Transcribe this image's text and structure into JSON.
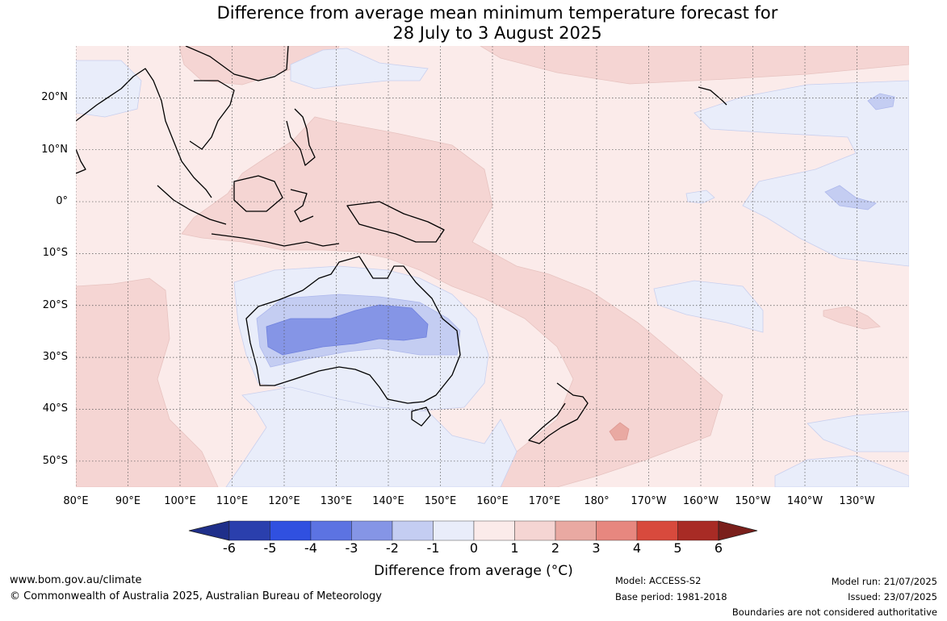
{
  "title": {
    "line1": "Difference from average mean minimum temperature forecast for",
    "line2": "28 July to 3 August 2025"
  },
  "map": {
    "latitude_labels": [
      "20°N",
      "10°N",
      "0°",
      "10°S",
      "20°S",
      "30°S",
      "40°S",
      "50°S"
    ],
    "latitude_values": [
      20,
      10,
      0,
      -10,
      -20,
      -30,
      -40,
      -50
    ],
    "longitude_labels": [
      "80°E",
      "90°E",
      "100°E",
      "110°E",
      "120°E",
      "130°E",
      "140°E",
      "150°E",
      "160°E",
      "170°E",
      "180°",
      "170°W",
      "160°W",
      "150°W",
      "140°W",
      "130°W"
    ],
    "longitude_values": [
      80,
      90,
      100,
      110,
      120,
      130,
      140,
      150,
      160,
      170,
      180,
      190,
      200,
      210,
      220,
      230
    ],
    "extent": {
      "lon_min": 80,
      "lon_max": 240,
      "lat_min": -55,
      "lat_max": 30
    },
    "colors": {
      "anomaly_0_1": "#fbebea",
      "anomaly_1_2": "#f5d5d3",
      "anomaly_m1_0": "#e9edfa",
      "anomaly_m2_m1": "#c4cdf2",
      "anomaly_m3_m2": "#8595e6",
      "coast": "#000000"
    }
  },
  "colorbar": {
    "ticks": [
      "-6",
      "-5",
      "-4",
      "-3",
      "-2",
      "-1",
      "0",
      "1",
      "2",
      "3",
      "4",
      "5",
      "6"
    ],
    "colors": [
      "#1f2f8a",
      "#2a3fad",
      "#3050e0",
      "#5c73e2",
      "#8595e6",
      "#c4cdf2",
      "#e9edfa",
      "#fbebea",
      "#f5d5d3",
      "#e9a9a2",
      "#e7877f",
      "#d84a3d",
      "#a82b25",
      "#7a1f1b"
    ],
    "label": "Difference from average (°C)"
  },
  "footer": {
    "website": "www.bom.gov.au/climate",
    "copyright": "© Commonwealth of Australia 2025, Australian Bureau of Meteorology",
    "model": "Model: ACCESS-S2",
    "base_period": "Base period: 1981-2018",
    "model_run": "Model run: 21/07/2025",
    "issued": "Issued: 23/07/2025",
    "disclaimer": "Boundaries are not considered authoritative"
  }
}
